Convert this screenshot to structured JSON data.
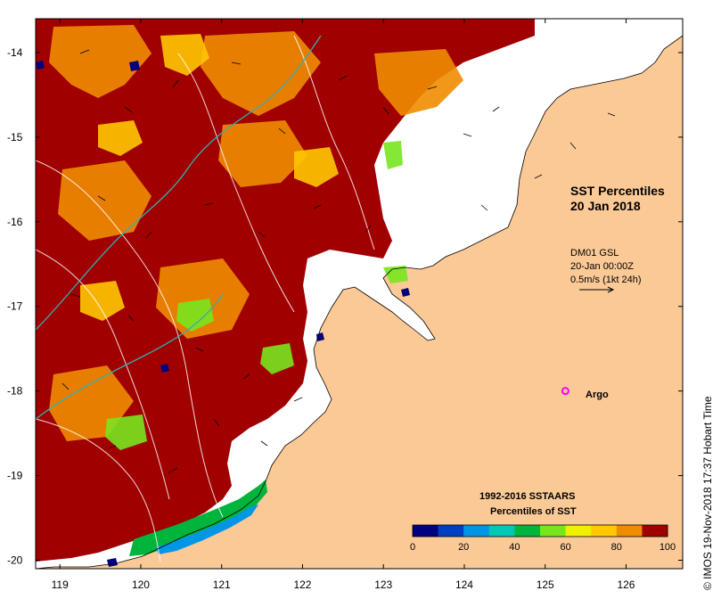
{
  "map": {
    "title_line1": "SST Percentiles",
    "title_line2": "20 Jan 2018",
    "current_model": "DM01 GSL",
    "current_time": "20-Jan 00:00Z",
    "current_scale": "0.5m/s (1kt 24h)",
    "argo_label": "Argo",
    "argo_marker_color": "#ff00ff",
    "credit": "© IMOS 19-Nov-2018 17:37 Hobart Time",
    "land_color": "#fbc996",
    "lon_ticks": [
      "119",
      "120",
      "121",
      "122",
      "123",
      "124",
      "125",
      "126"
    ],
    "lat_ticks": [
      "-14",
      "-15",
      "-16",
      "-17",
      "-18",
      "-19",
      "-20"
    ],
    "lon_range": [
      118.7,
      126.7
    ],
    "lat_range": [
      -20.1,
      -13.6
    ],
    "argo_position": {
      "lon": 125.25,
      "lat": -18.0
    }
  },
  "legend": {
    "title_line1": "1992-2016 SSTAARS",
    "title_line2": "Percentiles of SST",
    "tick_labels": [
      "0",
      "20",
      "40",
      "60",
      "80",
      "100"
    ],
    "bins": [
      {
        "range": "0-10",
        "color": "#000080"
      },
      {
        "range": "10-20",
        "color": "#0040c0"
      },
      {
        "range": "20-30",
        "color": "#0096e6"
      },
      {
        "range": "30-40",
        "color": "#00c8b4"
      },
      {
        "range": "40-50",
        "color": "#00b43c"
      },
      {
        "range": "50-60",
        "color": "#78e61e"
      },
      {
        "range": "60-70",
        "color": "#f0f000"
      },
      {
        "range": "70-80",
        "color": "#ffc800"
      },
      {
        "range": "80-90",
        "color": "#f08c00"
      },
      {
        "range": "90-100",
        "color": "#a00000"
      }
    ]
  }
}
